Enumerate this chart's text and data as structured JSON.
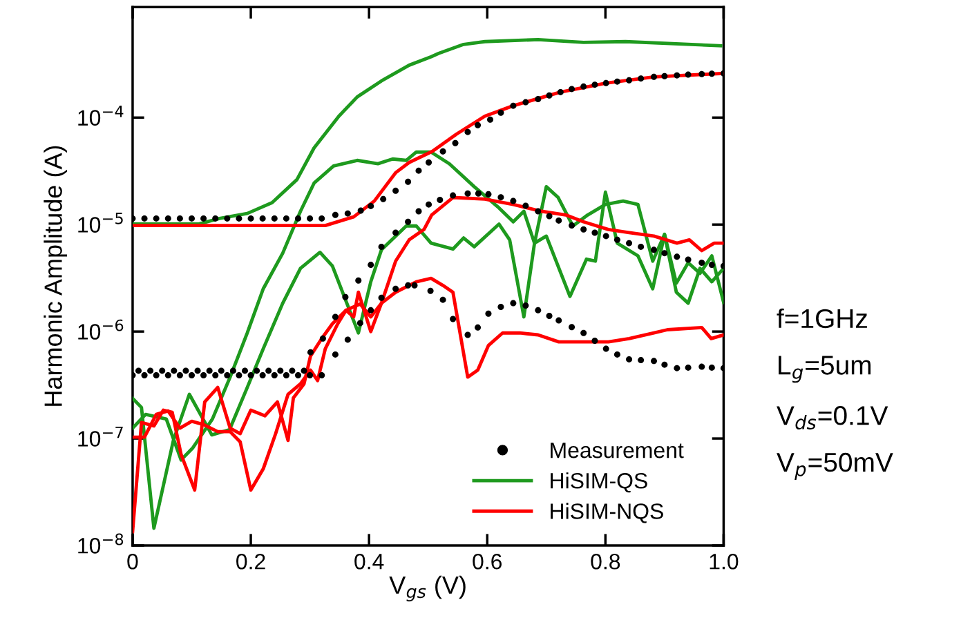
{
  "chart_data": {
    "type": "line",
    "xlabel": "V$_{gs}$ (V)",
    "ylabel": "Harmonic Amplitude (A)",
    "xlim": [
      0,
      1.0
    ],
    "xticks": [
      0,
      0.2,
      0.4,
      0.6,
      0.8,
      {
        "value": 1.0,
        "label": "1.0"
      }
    ],
    "ylim": [
      1e-08,
      0.00108
    ],
    "log": true,
    "yticks": [
      {
        "value": 1e-08,
        "label": "10$^{−8}$"
      },
      {
        "value": 1e-07,
        "label": "10$^{−7}$"
      },
      {
        "value": 1e-06,
        "label": "10$^{−6}$"
      },
      {
        "value": 1e-05,
        "label": "10$^{−5}$"
      },
      {
        "value": 0.0001,
        "label": "10$^{−4}$"
      }
    ],
    "grid": false,
    "legend": "bottom right",
    "line_style": "solid",
    "annotations": [
      "f=1GHz",
      "L$_{g}$=5um",
      "V$_{ds}$=0.1V",
      "V$_{p}$=50mV"
    ],
    "series": [
      {
        "type": "scatter",
        "name": "Measurement",
        "color": "#000000",
        "marker": "circle",
        "x": [
          0,
          0.02,
          0.04,
          0.06,
          0.08,
          0.1,
          0.12,
          0.14,
          0.16,
          0.18,
          0.2,
          0.22,
          0.24,
          0.26,
          0.28,
          0.3,
          0.32,
          0.343,
          0.364,
          0.386,
          0.403,
          0.424,
          0.445,
          0.466,
          0.484,
          0.501,
          0.525,
          0.546,
          0.567,
          0.584,
          0.605,
          0.623,
          0.644,
          0.665,
          0.686,
          0.705,
          0.724,
          0.743,
          0.763,
          0.782,
          0.801,
          0.82,
          0.84,
          0.86,
          0.882,
          0.9,
          0.921,
          0.94,
          0.963,
          0.98,
          1.0
        ],
        "values": [
          1.14e-05,
          1.14e-05,
          1.14e-05,
          1.14e-05,
          1.14e-05,
          1.14e-05,
          1.14e-05,
          1.14e-05,
          1.14e-05,
          1.14e-05,
          1.14e-05,
          1.14e-05,
          1.14e-05,
          1.14e-05,
          1.14e-05,
          1.14e-05,
          1.14e-05,
          1.23e-05,
          1.27e-05,
          1.35e-05,
          1.49e-05,
          1.73e-05,
          2.07e-05,
          2.51e-05,
          3.19e-05,
          3.81e-05,
          4.83e-05,
          5.77e-05,
          7.33e-05,
          8.49e-05,
          9.56e-05,
          0.000111,
          0.000129,
          0.000139,
          0.000149,
          0.000161,
          0.000173,
          0.000185,
          0.000195,
          0.000203,
          0.00021,
          0.000217,
          0.000223,
          0.000232,
          0.00024,
          0.000244,
          0.000248,
          0.000252,
          0.000255,
          0.000257,
          0.000259
        ]
      },
      {
        "type": "scatter",
        "color": "#000000",
        "marker": "circle",
        "x": [
          0.01,
          0.03,
          0.05,
          0.07,
          0.09,
          0.11,
          0.13,
          0.15,
          0.17,
          0.19,
          0.21,
          0.23,
          0.25,
          0.27,
          0.29,
          0.301,
          0.322,
          0.343,
          0.36,
          0.382,
          0.403,
          0.421,
          0.445,
          0.466,
          0.484,
          0.501,
          0.52,
          0.542,
          0.567,
          0.585,
          0.602,
          0.623,
          0.644,
          0.665,
          0.686,
          0.705,
          0.721,
          0.743,
          0.763,
          0.782,
          0.801,
          0.82,
          0.84,
          0.86,
          0.882,
          0.9,
          0.921,
          0.94,
          0.963,
          0.98,
          1.0
        ],
        "values": [
          4.3e-07,
          4.3e-07,
          4.3e-07,
          4.3e-07,
          4.3e-07,
          4.3e-07,
          4.3e-07,
          4.3e-07,
          4.3e-07,
          4.3e-07,
          4.3e-07,
          4.3e-07,
          4.3e-07,
          4.3e-07,
          4.3e-07,
          6.4e-07,
          8.6e-07,
          1.37e-06,
          2.1e-06,
          3e-06,
          4.2e-06,
          6.2e-06,
          8.4e-06,
          1.06e-05,
          1.33e-05,
          1.54e-05,
          1.7e-05,
          1.87e-05,
          1.95e-05,
          1.95e-05,
          1.92e-05,
          1.8e-05,
          1.66e-05,
          1.5e-05,
          1.33e-05,
          1.2e-05,
          1.09e-05,
          9.8e-06,
          9e-06,
          8.4e-06,
          7.8e-06,
          7.2e-06,
          6.7e-06,
          6.2e-06,
          5.8e-06,
          5.4e-06,
          5e-06,
          4.7e-06,
          4.4e-06,
          4.2e-06,
          4.1e-06
        ]
      },
      {
        "type": "scatter",
        "color": "#000000",
        "marker": "circle",
        "x": [
          0,
          0.02,
          0.04,
          0.06,
          0.08,
          0.1,
          0.12,
          0.14,
          0.16,
          0.18,
          0.2,
          0.22,
          0.24,
          0.26,
          0.28,
          0.3,
          0.32,
          0.343,
          0.364,
          0.385,
          0.403,
          0.421,
          0.445,
          0.466,
          0.477,
          0.504,
          0.525,
          0.542,
          0.567,
          0.584,
          0.602,
          0.623,
          0.644,
          0.665,
          0.686,
          0.705,
          0.721,
          0.743,
          0.763,
          0.782,
          0.801,
          0.82,
          0.84,
          0.86,
          0.882,
          0.9,
          0.921,
          0.94,
          0.963,
          0.98,
          1.0
        ],
        "values": [
          3.9e-07,
          3.9e-07,
          3.9e-07,
          3.9e-07,
          3.9e-07,
          3.9e-07,
          3.9e-07,
          3.9e-07,
          3.9e-07,
          3.9e-07,
          3.9e-07,
          3.9e-07,
          3.9e-07,
          3.9e-07,
          3.9e-07,
          3.9e-07,
          3.9e-07,
          6.1e-07,
          8.4e-07,
          1.2e-06,
          1.58e-06,
          2.07e-06,
          2.51e-06,
          2.7e-06,
          2.7e-06,
          2.4e-06,
          1.98e-06,
          1.31e-06,
          9.3e-07,
          1.09e-06,
          1.47e-06,
          1.7e-06,
          1.84e-06,
          1.75e-06,
          1.58e-06,
          1.4e-06,
          1.27e-06,
          1.1e-06,
          9.7e-07,
          8.2e-07,
          6.9e-07,
          6.1e-07,
          5.5e-07,
          5.4e-07,
          5.3e-07,
          4.9e-07,
          4.55e-07,
          4.6e-07,
          4.69e-07,
          4.6e-07,
          4.55e-07
        ]
      },
      {
        "name": "HiSIM-QS",
        "color": "#1e9a1e",
        "x": [
          0,
          0.05,
          0.111,
          0.147,
          0.194,
          0.236,
          0.278,
          0.307,
          0.349,
          0.38,
          0.421,
          0.468,
          0.505,
          0.518,
          0.56,
          0.596,
          0.686,
          0.763,
          0.834,
          0.995
        ],
        "values": [
          1.01e-05,
          1.01e-05,
          1.01e-05,
          1.14e-05,
          1.27e-05,
          1.6e-05,
          2.63e-05,
          5.2e-05,
          0.000103,
          0.000156,
          0.00022,
          0.000309,
          0.00037,
          0.000398,
          0.000483,
          0.000513,
          0.000536,
          0.000505,
          0.000513,
          0.000469
        ]
      },
      {
        "color": "#1e9a1e",
        "x": [
          0,
          0.022,
          0.057,
          0.082,
          0.102,
          0.135,
          0.165,
          0.194,
          0.221,
          0.254,
          0.284,
          0.307,
          0.34,
          0.38,
          0.415,
          0.44,
          0.463,
          0.48,
          0.505,
          0.536,
          0.578,
          0.62,
          0.644,
          0.662,
          0.68,
          0.7,
          0.72,
          0.745,
          0.77,
          0.8,
          0.83,
          0.855,
          0.88,
          0.9,
          0.92,
          0.94,
          0.96,
          0.98,
          1.0
        ],
        "values": [
          1.25e-07,
          1.68e-07,
          1.52e-07,
          6.3e-08,
          8.2e-08,
          1.52e-07,
          3.75e-07,
          9.7e-07,
          2.51e-06,
          5.4e-06,
          1.33e-05,
          2.44e-05,
          3.53e-05,
          3.98e-05,
          3.7e-05,
          4.1e-05,
          3.98e-05,
          4.76e-05,
          4.76e-05,
          3.7e-05,
          2.26e-05,
          1.43e-05,
          1.06e-05,
          1.33e-05,
          6.7e-06,
          2.26e-05,
          1.79e-05,
          9.7e-06,
          1.23e-05,
          1.54e-05,
          1.66e-05,
          1.54e-05,
          4.55e-06,
          8.1e-06,
          2.33e-06,
          1.84e-06,
          3.9e-06,
          2.92e-06,
          3.9e-06
        ]
      },
      {
        "color": "#1e9a1e",
        "x": [
          0,
          0.015,
          0.036,
          0.069,
          0.096,
          0.134,
          0.164,
          0.194,
          0.221,
          0.254,
          0.284,
          0.317,
          0.338,
          0.382,
          0.403,
          0.421,
          0.463,
          0.48,
          0.505,
          0.542,
          0.56,
          0.578,
          0.62,
          0.638,
          0.662,
          0.68,
          0.7,
          0.74,
          0.768,
          0.783,
          0.8,
          0.82,
          0.855,
          0.88,
          0.9,
          0.92,
          0.94,
          0.96,
          0.98,
          1.0
        ],
        "values": [
          2.37e-07,
          1.95e-07,
          1.45e-08,
          9.6e-08,
          2.59e-07,
          1.08e-07,
          1.21e-07,
          3e-07,
          6.9e-07,
          1.84e-06,
          3.9e-06,
          5.5e-06,
          4.1e-06,
          9.7e-07,
          2.92e-06,
          5.8e-06,
          9.7e-06,
          9.7e-06,
          6.7e-06,
          5.9e-06,
          7.5e-06,
          6.2e-06,
          1.01e-05,
          7.2e-06,
          1.37e-06,
          6.7e-06,
          7.8e-06,
          2.13e-06,
          4.75e-06,
          4.55e-06,
          2.01e-05,
          6.7e-06,
          5.1e-06,
          2.51e-06,
          8.1e-06,
          2.83e-06,
          4.4e-06,
          3.5e-06,
          5.1e-06,
          1.87e-06
        ]
      },
      {
        "name": "HiSIM-NQS",
        "color": "#ff0000",
        "x": [
          0,
          0.1,
          0.2,
          0.326,
          0.374,
          0.409,
          0.445,
          0.468,
          0.507,
          0.548,
          0.596,
          0.644,
          0.724,
          0.801,
          0.882,
          1.0
        ],
        "values": [
          9.8e-06,
          9.8e-06,
          9.8e-06,
          9.8e-06,
          1.18e-05,
          1.66e-05,
          3.05e-05,
          3.81e-05,
          4.83e-05,
          7e-05,
          0.000103,
          0.000129,
          0.000173,
          0.00021,
          0.00024,
          0.000259
        ]
      },
      {
        "color": "#ff0000",
        "x": [
          0,
          0.02,
          0.04,
          0.06,
          0.08,
          0.1,
          0.12,
          0.144,
          0.165,
          0.182,
          0.2,
          0.221,
          0.242,
          0.263,
          0.284,
          0.301,
          0.313,
          0.326,
          0.347,
          0.361,
          0.374,
          0.382,
          0.403,
          0.421,
          0.445,
          0.468,
          0.493,
          0.506,
          0.542,
          0.596,
          0.644,
          0.692,
          0.733,
          0.763,
          0.805,
          0.84,
          0.882,
          0.921,
          0.942,
          0.963,
          0.984,
          1.0
        ],
        "values": [
          1.03e-07,
          1.03e-07,
          1.68e-07,
          1.81e-07,
          1.25e-07,
          1.45e-07,
          1.35e-07,
          1.16e-07,
          1.16e-07,
          9.3e-08,
          3.3e-08,
          5.2e-08,
          1.11e-07,
          2.59e-07,
          3.24e-07,
          4.36e-07,
          3.48e-07,
          6.9e-07,
          1.18e-06,
          1.58e-06,
          1.37e-06,
          2.33e-06,
          1e-06,
          1.84e-06,
          4.55e-06,
          7.2e-06,
          9e-06,
          1.23e-05,
          1.79e-05,
          1.73e-05,
          1.54e-05,
          1.33e-05,
          1.23e-05,
          1.06e-05,
          9e-06,
          8.4e-06,
          7.8e-06,
          6.7e-06,
          7.2e-06,
          5.7e-06,
          6.7e-06,
          6.7e-06
        ]
      },
      {
        "color": "#ff0000",
        "x": [
          0,
          0.015,
          0.036,
          0.052,
          0.067,
          0.082,
          0.105,
          0.122,
          0.144,
          0.165,
          0.182,
          0.2,
          0.224,
          0.245,
          0.263,
          0.272,
          0.29,
          0.301,
          0.32,
          0.338,
          0.361,
          0.385,
          0.403,
          0.421,
          0.445,
          0.48,
          0.505,
          0.525,
          0.542,
          0.567,
          0.584,
          0.602,
          0.626,
          0.655,
          0.686,
          0.721,
          0.763,
          0.805,
          0.84,
          0.882,
          0.905,
          0.963,
          0.979,
          1.0
        ],
        "values": [
          1.35e-08,
          1.41e-07,
          1.31e-07,
          1.84e-07,
          1.76e-07,
          7.1e-08,
          3.3e-08,
          2.2e-07,
          3e-07,
          1.25e-07,
          1.11e-07,
          1.84e-07,
          1.63e-07,
          2.2e-07,
          9.6e-08,
          2.4e-07,
          3.24e-07,
          5.9e-07,
          8.6e-07,
          1.18e-06,
          1.58e-06,
          1.81e-06,
          1.37e-06,
          1.84e-06,
          2.33e-06,
          2.92e-06,
          3.14e-06,
          2.7e-06,
          2.33e-06,
          3.75e-07,
          4.36e-07,
          7.4e-07,
          9.7e-07,
          9.7e-07,
          9.3e-07,
          8e-07,
          8e-07,
          8e-07,
          8.6e-07,
          9.7e-07,
          1.04e-06,
          1.09e-06,
          8.6e-07,
          9.3e-07
        ]
      }
    ]
  }
}
